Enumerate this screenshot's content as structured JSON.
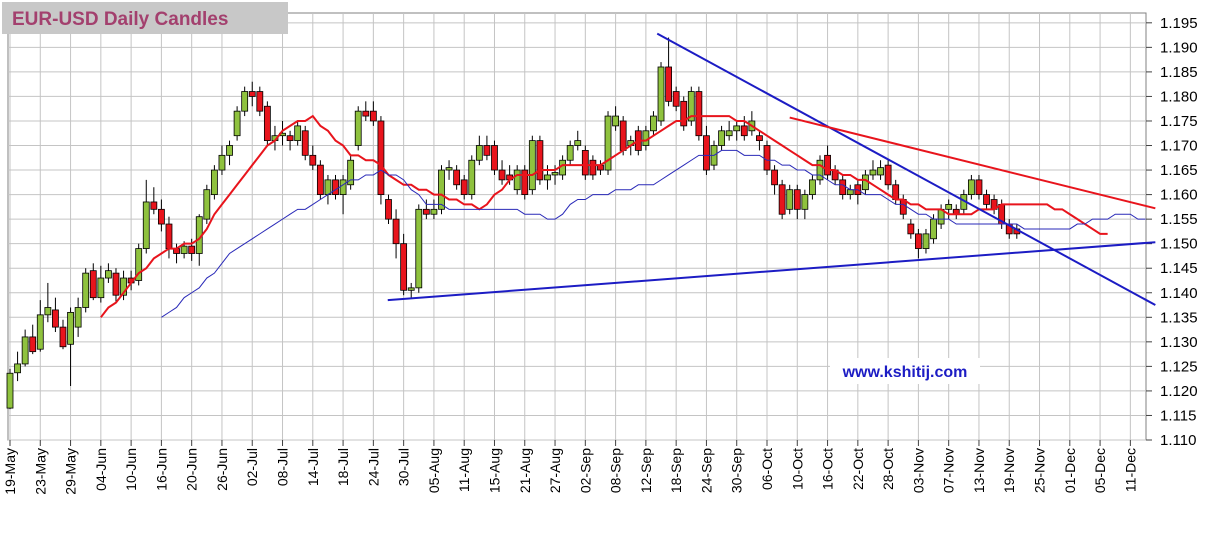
{
  "chart_data": {
    "type": "candlestick",
    "title": "EUR-USD Daily  Candles",
    "annotation": "www.kshitij.com",
    "up_color": "#8fc23e",
    "down_color": "#e8141c",
    "grid": true,
    "ylim": [
      1.11,
      1.197
    ],
    "yticks": [
      {
        "value": 1.11,
        "label": "1.110"
      },
      1.115,
      {
        "value": 1.12,
        "label": "1.120"
      },
      1.125,
      {
        "value": 1.13,
        "label": "1.130"
      },
      1.135,
      {
        "value": 1.14,
        "label": "1.140"
      },
      1.145,
      {
        "value": 1.15,
        "label": "1.150"
      },
      1.155,
      {
        "value": 1.16,
        "label": "1.160"
      },
      1.165,
      {
        "value": 1.17,
        "label": "1.170"
      },
      1.175,
      {
        "value": 1.18,
        "label": "1.180"
      },
      1.185,
      {
        "value": 1.19,
        "label": "1.190"
      },
      1.195
    ],
    "categories": [
      "19-May",
      null,
      null,
      null,
      "23-May",
      null,
      null,
      null,
      "29-May",
      null,
      null,
      null,
      "04-Jun",
      null,
      null,
      null,
      "10-Jun",
      null,
      null,
      null,
      "16-Jun",
      null,
      null,
      null,
      "20-Jun",
      null,
      null,
      null,
      "26-Jun",
      null,
      null,
      null,
      "02-Jul",
      null,
      null,
      null,
      "08-Jul",
      null,
      null,
      null,
      "14-Jul",
      null,
      null,
      null,
      "18-Jul",
      null,
      null,
      null,
      "24-Jul",
      null,
      null,
      null,
      "30-Jul",
      null,
      null,
      null,
      "05-Aug",
      null,
      null,
      null,
      "11-Aug",
      null,
      null,
      null,
      "15-Aug",
      null,
      null,
      null,
      "21-Aug",
      null,
      null,
      null,
      "27-Aug",
      null,
      null,
      null,
      "02-Sep",
      null,
      null,
      null,
      "08-Sep",
      null,
      null,
      null,
      "12-Sep",
      null,
      null,
      null,
      "18-Sep",
      null,
      null,
      null,
      "24-Sep",
      null,
      null,
      null,
      "30-Sep",
      null,
      null,
      null,
      "06-Oct",
      null,
      null,
      null,
      "10-Oct",
      null,
      null,
      null,
      "16-Oct",
      null,
      null,
      null,
      "22-Oct",
      null,
      null,
      null,
      "28-Oct",
      null,
      null,
      null,
      "03-Nov",
      null,
      null,
      null,
      "07-Nov",
      null,
      null,
      null,
      "13-Nov",
      null,
      null,
      null,
      "19-Nov",
      null,
      null,
      null,
      "25-Nov",
      null,
      null,
      null,
      "01-Dec",
      null,
      null,
      null,
      "05-Dec",
      null,
      null,
      null,
      "11-Dec",
      null,
      null
    ],
    "candles": [
      [
        1.1165,
        1.1245,
        1.1163,
        1.1236
      ],
      [
        1.1237,
        1.128,
        1.122,
        1.1255
      ],
      [
        1.1255,
        1.1325,
        1.125,
        1.131
      ],
      [
        1.131,
        1.1335,
        1.1275,
        1.128
      ],
      [
        1.1285,
        1.1385,
        1.128,
        1.1355
      ],
      [
        1.1355,
        1.142,
        1.134,
        1.137
      ],
      [
        1.1365,
        1.139,
        1.132,
        1.133
      ],
      [
        1.133,
        1.1345,
        1.1285,
        1.129
      ],
      [
        1.1295,
        1.137,
        1.121,
        1.136
      ],
      [
        1.133,
        1.139,
        1.131,
        1.137
      ],
      [
        1.137,
        1.145,
        1.136,
        1.144
      ],
      [
        1.1445,
        1.146,
        1.1385,
        1.139
      ],
      [
        1.139,
        1.1455,
        1.138,
        1.143
      ],
      [
        1.143,
        1.146,
        1.142,
        1.1445
      ],
      [
        1.144,
        1.145,
        1.138,
        1.1395
      ],
      [
        1.1395,
        1.1445,
        1.1385,
        1.143
      ],
      [
        1.143,
        1.1445,
        1.1405,
        1.142
      ],
      [
        1.1425,
        1.15,
        1.1415,
        1.149
      ],
      [
        1.149,
        1.163,
        1.148,
        1.1585
      ],
      [
        1.1585,
        1.1615,
        1.156,
        1.157
      ],
      [
        1.157,
        1.159,
        1.1525,
        1.154
      ],
      [
        1.154,
        1.1555,
        1.147,
        1.149
      ],
      [
        1.149,
        1.15,
        1.146,
        1.148
      ],
      [
        1.148,
        1.1505,
        1.147,
        1.1495
      ],
      [
        1.1495,
        1.151,
        1.1465,
        1.148
      ],
      [
        1.148,
        1.156,
        1.1455,
        1.1555
      ],
      [
        1.155,
        1.162,
        1.154,
        1.161
      ],
      [
        1.16,
        1.166,
        1.159,
        1.165
      ],
      [
        1.165,
        1.17,
        1.164,
        1.168
      ],
      [
        1.168,
        1.171,
        1.166,
        1.17
      ],
      [
        1.172,
        1.178,
        1.171,
        1.177
      ],
      [
        1.177,
        1.182,
        1.176,
        1.181
      ],
      [
        1.181,
        1.183,
        1.178,
        1.18
      ],
      [
        1.181,
        1.182,
        1.176,
        1.177
      ],
      [
        1.178,
        1.179,
        1.17,
        1.171
      ],
      [
        1.171,
        1.174,
        1.169,
        1.172
      ],
      [
        1.172,
        1.175,
        1.17,
        1.1725
      ],
      [
        1.172,
        1.173,
        1.169,
        1.171
      ],
      [
        1.171,
        1.175,
        1.17,
        1.174
      ],
      [
        1.173,
        1.174,
        1.167,
        1.168
      ],
      [
        1.168,
        1.17,
        1.165,
        1.166
      ],
      [
        1.166,
        1.167,
        1.159,
        1.16
      ],
      [
        1.16,
        1.164,
        1.158,
        1.163
      ],
      [
        1.163,
        1.164,
        1.159,
        1.16
      ],
      [
        1.16,
        1.164,
        1.156,
        1.163
      ],
      [
        1.162,
        1.168,
        1.161,
        1.167
      ],
      [
        1.17,
        1.178,
        1.169,
        1.177
      ],
      [
        1.177,
        1.179,
        1.175,
        1.176
      ],
      [
        1.177,
        1.179,
        1.174,
        1.175
      ],
      [
        1.175,
        1.176,
        1.158,
        1.16
      ],
      [
        1.159,
        1.16,
        1.154,
        1.155
      ],
      [
        1.155,
        1.157,
        1.147,
        1.15
      ],
      [
        1.15,
        1.152,
        1.1395,
        1.1405
      ],
      [
        1.1405,
        1.142,
        1.139,
        1.141
      ],
      [
        1.141,
        1.158,
        1.14,
        1.157
      ],
      [
        1.157,
        1.159,
        1.155,
        1.156
      ],
      [
        1.156,
        1.159,
        1.155,
        1.157
      ],
      [
        1.157,
        1.166,
        1.156,
        1.165
      ],
      [
        1.165,
        1.167,
        1.163,
        1.1655
      ],
      [
        1.165,
        1.166,
        1.161,
        1.162
      ],
      [
        1.163,
        1.164,
        1.159,
        1.16
      ],
      [
        1.16,
        1.168,
        1.159,
        1.167
      ],
      [
        1.167,
        1.172,
        1.166,
        1.17
      ],
      [
        1.17,
        1.172,
        1.167,
        1.168
      ],
      [
        1.17,
        1.171,
        1.164,
        1.165
      ],
      [
        1.165,
        1.167,
        1.162,
        1.163
      ],
      [
        1.164,
        1.166,
        1.162,
        1.163
      ],
      [
        1.161,
        1.166,
        1.16,
        1.165
      ],
      [
        1.165,
        1.166,
        1.159,
        1.16
      ],
      [
        1.161,
        1.172,
        1.16,
        1.171
      ],
      [
        1.171,
        1.172,
        1.162,
        1.163
      ],
      [
        1.163,
        1.166,
        1.161,
        1.164
      ],
      [
        1.164,
        1.166,
        1.162,
        1.1645
      ],
      [
        1.164,
        1.168,
        1.163,
        1.167
      ],
      [
        1.167,
        1.171,
        1.166,
        1.17
      ],
      [
        1.17,
        1.173,
        1.169,
        1.171
      ],
      [
        1.169,
        1.17,
        1.163,
        1.164
      ],
      [
        1.167,
        1.168,
        1.163,
        1.164
      ],
      [
        1.166,
        1.167,
        1.164,
        1.165
      ],
      [
        1.165,
        1.177,
        1.164,
        1.176
      ],
      [
        1.174,
        1.178,
        1.173,
        1.176
      ],
      [
        1.175,
        1.176,
        1.168,
        1.169
      ],
      [
        1.17,
        1.172,
        1.168,
        1.171
      ],
      [
        1.173,
        1.174,
        1.168,
        1.169
      ],
      [
        1.17,
        1.174,
        1.169,
        1.173
      ],
      [
        1.173,
        1.177,
        1.172,
        1.176
      ],
      [
        1.175,
        1.187,
        1.174,
        1.186
      ],
      [
        1.186,
        1.192,
        1.178,
        1.179
      ],
      [
        1.181,
        1.182,
        1.177,
        1.178
      ],
      [
        1.179,
        1.18,
        1.173,
        1.174
      ],
      [
        1.175,
        1.182,
        1.174,
        1.181
      ],
      [
        1.181,
        1.182,
        1.171,
        1.172
      ],
      [
        1.172,
        1.174,
        1.164,
        1.165
      ],
      [
        1.166,
        1.171,
        1.165,
        1.17
      ],
      [
        1.17,
        1.174,
        1.169,
        1.173
      ],
      [
        1.172,
        1.175,
        1.171,
        1.173
      ],
      [
        1.173,
        1.175,
        1.171,
        1.174
      ],
      [
        1.174,
        1.176,
        1.171,
        1.172
      ],
      [
        1.173,
        1.177,
        1.172,
        1.175
      ],
      [
        1.172,
        1.173,
        1.169,
        1.171
      ],
      [
        1.17,
        1.171,
        1.164,
        1.165
      ],
      [
        1.165,
        1.166,
        1.16,
        1.162
      ],
      [
        1.162,
        1.163,
        1.155,
        1.156
      ],
      [
        1.157,
        1.162,
        1.156,
        1.161
      ],
      [
        1.161,
        1.162,
        1.155,
        1.157
      ],
      [
        1.157,
        1.161,
        1.155,
        1.16
      ],
      [
        1.16,
        1.164,
        1.159,
        1.163
      ],
      [
        1.163,
        1.168,
        1.162,
        1.167
      ],
      [
        1.168,
        1.17,
        1.163,
        1.164
      ],
      [
        1.165,
        1.166,
        1.162,
        1.163
      ],
      [
        1.163,
        1.164,
        1.159,
        1.16
      ],
      [
        1.16,
        1.162,
        1.159,
        1.161
      ],
      [
        1.162,
        1.163,
        1.158,
        1.16
      ],
      [
        1.161,
        1.165,
        1.16,
        1.164
      ],
      [
        1.164,
        1.167,
        1.163,
        1.165
      ],
      [
        1.164,
        1.167,
        1.163,
        1.1655
      ],
      [
        1.166,
        1.167,
        1.161,
        1.162
      ],
      [
        1.162,
        1.163,
        1.158,
        1.159
      ],
      [
        1.159,
        1.16,
        1.155,
        1.156
      ],
      [
        1.154,
        1.155,
        1.151,
        1.152
      ],
      [
        1.152,
        1.153,
        1.147,
        1.149
      ],
      [
        1.149,
        1.153,
        1.148,
        1.152
      ],
      [
        1.151,
        1.156,
        1.15,
        1.155
      ],
      [
        1.154,
        1.158,
        1.153,
        1.157
      ],
      [
        1.157,
        1.159,
        1.155,
        1.158
      ],
      [
        1.157,
        1.158,
        1.155,
        1.156
      ],
      [
        1.157,
        1.161,
        1.156,
        1.16
      ],
      [
        1.16,
        1.164,
        1.159,
        1.163
      ],
      [
        1.163,
        1.164,
        1.159,
        1.16
      ],
      [
        1.16,
        1.161,
        1.157,
        1.158
      ],
      [
        1.159,
        1.16,
        1.156,
        1.157
      ],
      [
        1.158,
        1.159,
        1.153,
        1.154
      ],
      [
        1.154,
        1.155,
        1.151,
        1.152
      ],
      [
        1.153,
        1.154,
        1.151,
        1.152
      ],
      null,
      null,
      null,
      null,
      null,
      null,
      null,
      null,
      null,
      null,
      null,
      null,
      null,
      null,
      null,
      null,
      null
    ],
    "lines": [
      {
        "color": "#e8141c",
        "values": [
          null,
          null,
          null,
          null,
          null,
          null,
          null,
          null,
          null,
          null,
          null,
          null,
          1.135,
          1.137,
          1.138,
          1.14,
          1.142,
          1.144,
          1.145,
          1.147,
          1.148,
          1.149,
          1.149,
          1.15,
          1.15,
          1.151,
          1.153,
          1.156,
          1.158,
          1.16,
          1.162,
          1.164,
          1.166,
          1.168,
          1.17,
          1.171,
          1.173,
          1.174,
          1.175,
          1.175,
          1.176,
          1.174,
          1.173,
          1.171,
          1.17,
          1.168,
          1.168,
          1.167,
          1.167,
          1.166,
          1.164,
          1.163,
          1.162,
          1.162,
          1.161,
          1.161,
          1.16,
          1.16,
          1.159,
          1.159,
          1.158,
          1.158,
          1.157,
          1.158,
          1.16,
          1.161,
          1.163,
          1.164,
          1.164,
          1.164,
          1.165,
          1.165,
          1.165,
          1.166,
          1.166,
          1.166,
          1.166,
          1.166,
          1.166,
          1.167,
          1.168,
          1.169,
          1.17,
          1.171,
          1.171,
          1.172,
          1.173,
          1.174,
          1.175,
          1.175,
          1.176,
          1.176,
          1.176,
          1.176,
          1.176,
          1.176,
          1.175,
          1.175,
          1.174,
          1.173,
          1.172,
          1.171,
          1.17,
          1.169,
          1.168,
          1.167,
          1.166,
          1.166,
          1.165,
          1.165,
          1.164,
          1.164,
          1.163,
          1.163,
          1.162,
          1.161,
          1.16,
          1.159,
          1.159,
          1.158,
          1.158,
          1.157,
          1.157,
          1.157,
          1.156,
          1.156,
          1.156,
          1.156,
          1.157,
          1.157,
          1.157,
          1.158,
          1.158,
          1.158,
          1.158,
          1.158,
          1.158,
          1.158,
          1.157,
          1.157,
          1.156,
          1.155,
          1.154,
          1.153,
          1.152,
          1.152,
          null,
          null,
          null,
          null,
          null
        ]
      },
      {
        "color": "#2a2ab8",
        "values": [
          null,
          null,
          null,
          null,
          null,
          null,
          null,
          null,
          null,
          null,
          null,
          null,
          null,
          null,
          null,
          null,
          null,
          null,
          null,
          null,
          1.135,
          1.136,
          1.137,
          1.139,
          1.14,
          1.141,
          1.143,
          1.144,
          1.146,
          1.148,
          1.149,
          1.15,
          1.151,
          1.152,
          1.153,
          1.154,
          1.155,
          1.156,
          1.157,
          1.157,
          1.158,
          1.159,
          1.16,
          1.161,
          1.162,
          1.163,
          1.163,
          1.164,
          1.164,
          1.165,
          1.164,
          1.164,
          1.163,
          1.161,
          1.16,
          1.158,
          1.158,
          1.158,
          1.157,
          1.157,
          1.157,
          1.157,
          1.157,
          1.157,
          1.157,
          1.157,
          1.157,
          1.157,
          1.156,
          1.156,
          1.156,
          1.155,
          1.155,
          1.156,
          1.158,
          1.159,
          1.159,
          1.16,
          1.16,
          1.16,
          1.161,
          1.161,
          1.161,
          1.162,
          1.162,
          1.162,
          1.163,
          1.164,
          1.165,
          1.166,
          1.167,
          1.168,
          1.168,
          1.168,
          1.169,
          1.169,
          1.169,
          1.168,
          1.168,
          1.168,
          1.167,
          1.167,
          1.166,
          1.166,
          1.165,
          1.165,
          1.164,
          1.164,
          1.163,
          1.162,
          1.162,
          1.161,
          1.161,
          1.16,
          1.16,
          1.16,
          1.159,
          1.158,
          1.158,
          1.157,
          1.156,
          1.156,
          1.155,
          1.155,
          1.155,
          1.154,
          1.154,
          1.154,
          1.154,
          1.154,
          1.154,
          1.154,
          1.154,
          1.154,
          1.153,
          1.153,
          1.153,
          1.153,
          1.153,
          1.153,
          1.153,
          1.154,
          1.154,
          1.155,
          1.155,
          1.155,
          1.156,
          1.156,
          1.156,
          1.155,
          1.155
        ]
      }
    ],
    "trendlines": [
      {
        "color": "#1c1cc4",
        "x": [
          85.5,
          151.3
        ],
        "y": [
          1.1928,
          1.1375
        ]
      },
      {
        "color": "#e8141c",
        "x": [
          103,
          151.3
        ],
        "y": [
          1.1757,
          1.1572
        ]
      },
      {
        "color": "#1c1cc4",
        "x": [
          49.9,
          151.3
        ],
        "y": [
          1.1385,
          1.1503
        ]
      }
    ]
  }
}
